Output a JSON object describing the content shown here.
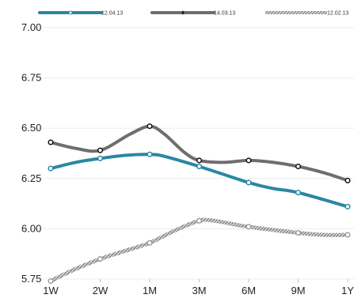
{
  "chart_data": {
    "type": "line",
    "title": "",
    "xlabel": "",
    "ylabel": "",
    "categories": [
      "1W",
      "2W",
      "1M",
      "3M",
      "6M",
      "9M",
      "1Y"
    ],
    "ylim": [
      5.75,
      7.0
    ],
    "yticks": [
      "7.00",
      "6.75",
      "6.50",
      "6.25",
      "6.00",
      "5.75"
    ],
    "ytick_values": [
      7.0,
      6.75,
      6.5,
      6.25,
      6.0,
      5.75
    ],
    "grid": "horizontal",
    "legend_position": "top",
    "series": [
      {
        "name": "12.04.13",
        "color": "#2a87a2",
        "style": "solid",
        "values": [
          6.3,
          6.35,
          6.37,
          6.31,
          6.23,
          6.18,
          6.11
        ],
        "curve": [
          [
            0.0,
            6.3
          ],
          [
            0.5,
            6.33
          ],
          [
            1.0,
            6.35
          ],
          [
            1.5,
            6.365
          ],
          [
            2.0,
            6.37
          ],
          [
            2.3,
            6.36
          ],
          [
            3.0,
            6.31
          ],
          [
            4.0,
            6.23
          ],
          [
            4.5,
            6.2
          ],
          [
            5.0,
            6.18
          ],
          [
            6.0,
            6.11
          ]
        ]
      },
      {
        "name": "14.03.13",
        "color": "#6e6e6e",
        "style": "solid",
        "values": [
          6.43,
          6.39,
          6.51,
          6.34,
          6.34,
          6.31,
          6.24
        ],
        "curve": [
          [
            0.0,
            6.43
          ],
          [
            0.5,
            6.4
          ],
          [
            1.0,
            6.39
          ],
          [
            1.6,
            6.47
          ],
          [
            2.0,
            6.51
          ],
          [
            2.3,
            6.47
          ],
          [
            2.7,
            6.38
          ],
          [
            3.0,
            6.34
          ],
          [
            3.5,
            6.33
          ],
          [
            4.0,
            6.34
          ],
          [
            4.5,
            6.33
          ],
          [
            5.0,
            6.31
          ],
          [
            5.5,
            6.28
          ],
          [
            6.0,
            6.24
          ]
        ]
      },
      {
        "name": "12.02.13",
        "color": "#9b9b9b",
        "style": "hatched",
        "values": [
          5.74,
          5.85,
          5.93,
          6.04,
          6.01,
          5.98,
          5.97
        ],
        "curve": [
          [
            0.0,
            5.74
          ],
          [
            0.5,
            5.8
          ],
          [
            1.0,
            5.85
          ],
          [
            1.5,
            5.89
          ],
          [
            2.0,
            5.93
          ],
          [
            2.5,
            5.99
          ],
          [
            3.0,
            6.04
          ],
          [
            3.3,
            6.04
          ],
          [
            4.0,
            6.01
          ],
          [
            5.0,
            5.98
          ],
          [
            5.5,
            5.97
          ],
          [
            6.0,
            5.97
          ]
        ]
      }
    ]
  }
}
